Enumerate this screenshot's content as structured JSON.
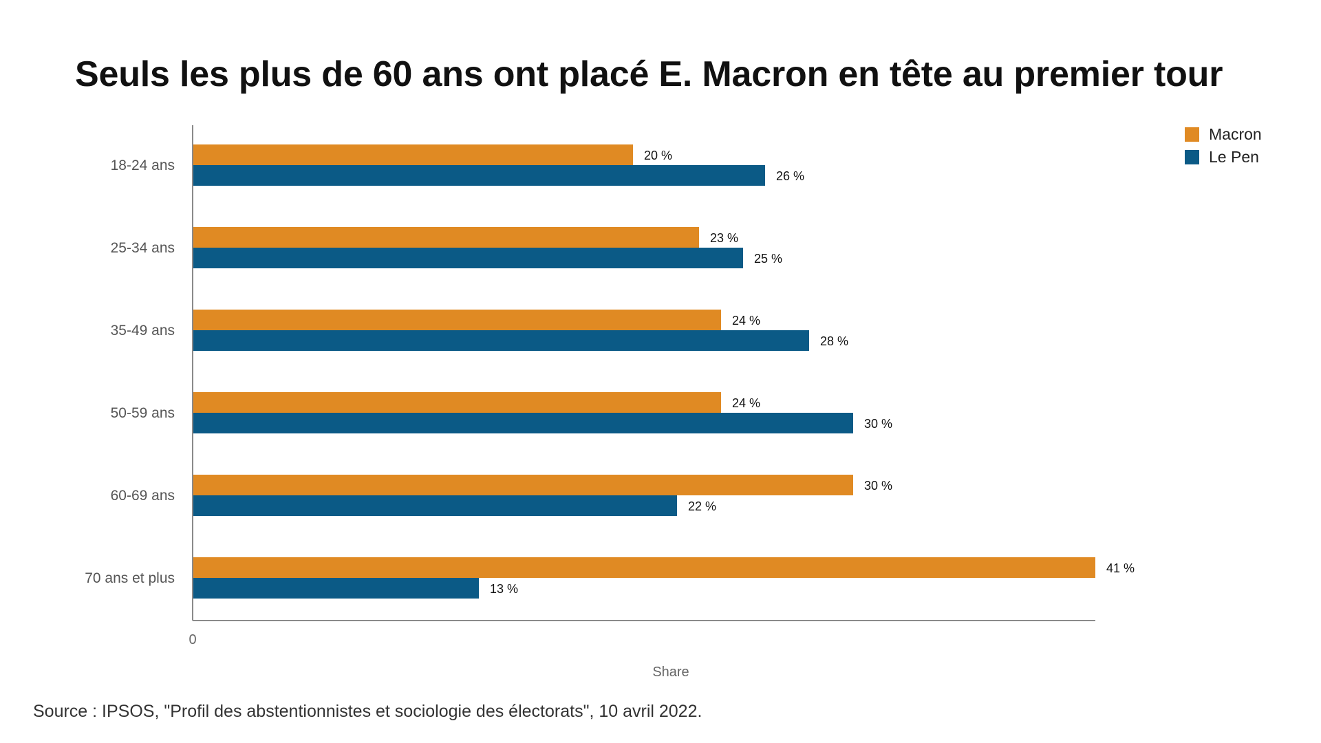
{
  "chart_data": {
    "type": "bar",
    "orientation": "horizontal",
    "title": "Seuls les plus de 60 ans ont placé E. Macron en tête au premier tour",
    "xlabel": "Share",
    "ylabel": "",
    "x_tick_labels": [
      "0"
    ],
    "xlim": [
      0,
      41
    ],
    "categories": [
      "18-24 ans",
      "25-34 ans",
      "35-49 ans",
      "50-59 ans",
      "60-69 ans",
      "70 ans et plus"
    ],
    "series": [
      {
        "name": "Macron",
        "color": "#E08A23",
        "values": [
          20,
          23,
          24,
          24,
          30,
          41
        ],
        "labels": [
          "20 %",
          "23 %",
          "24 %",
          "24 %",
          "30 %",
          "41 %"
        ]
      },
      {
        "name": "Le Pen",
        "color": "#0B5A86",
        "values": [
          26,
          25,
          28,
          30,
          22,
          13
        ],
        "labels": [
          "26 %",
          "25 %",
          "28 %",
          "30 %",
          "22 %",
          "13 %"
        ]
      }
    ],
    "legend_position": "top-right",
    "grid": false
  },
  "source": "Source : IPSOS, \"Profil des abstentionnistes et sociologie des électorats\", 10 avril 2022."
}
